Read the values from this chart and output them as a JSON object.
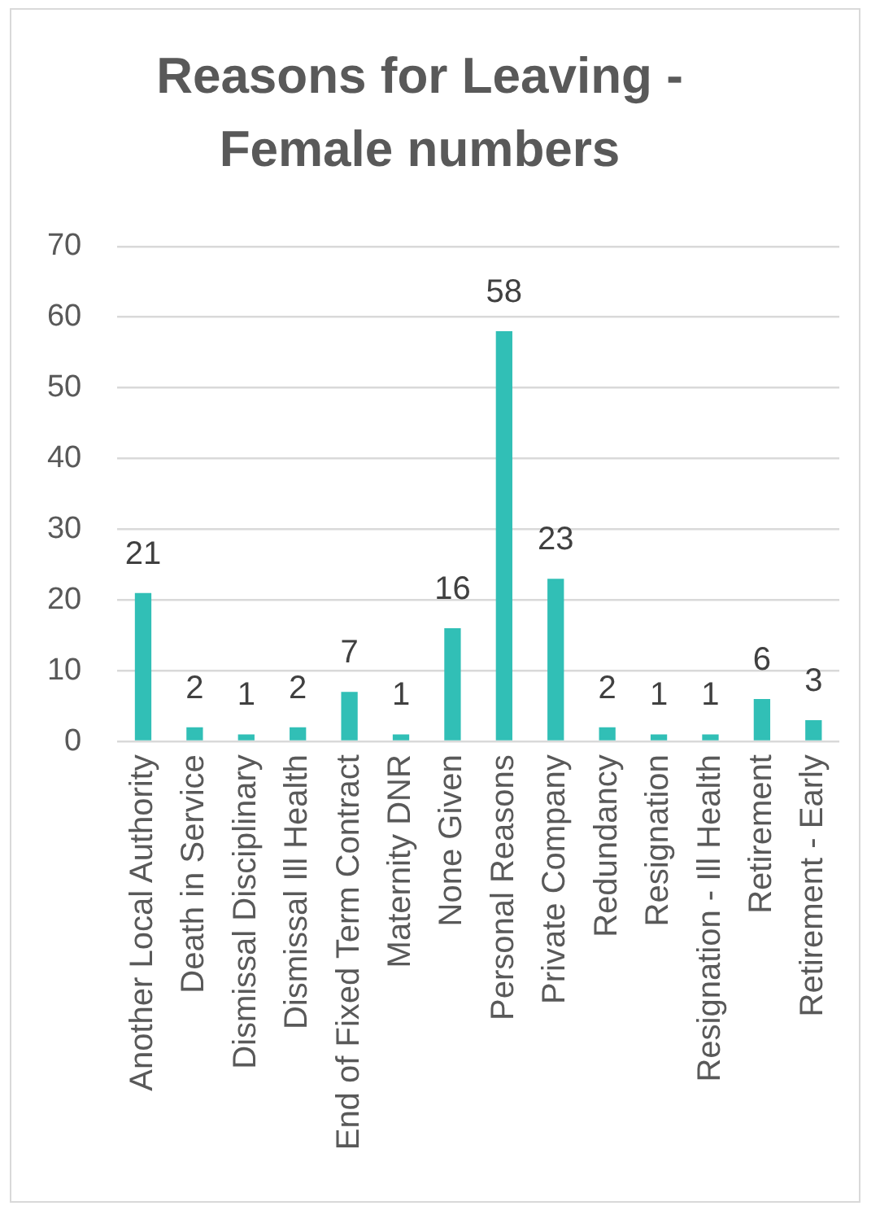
{
  "chart_data": {
    "type": "bar",
    "title": "Reasons for Leaving - Female numbers",
    "categories": [
      "Another Local Authority",
      "Death in Service",
      "Dismissal Disciplinary",
      "Dismissal Ill Health",
      "End of Fixed Term Contract",
      "Maternity DNR",
      "None Given",
      "Personal Reasons",
      "Private Company",
      "Redundancy",
      "Resignation",
      "Resignation - Ill Health",
      "Retirement",
      "Retirement - Early"
    ],
    "values": [
      21,
      2,
      1,
      2,
      7,
      1,
      16,
      58,
      23,
      2,
      1,
      1,
      6,
      3
    ],
    "color": "#31bfb6",
    "ylim": [
      0,
      70
    ],
    "yticks": [
      0,
      10,
      20,
      30,
      40,
      50,
      60,
      70
    ],
    "grid": "y",
    "data_labels": true
  }
}
